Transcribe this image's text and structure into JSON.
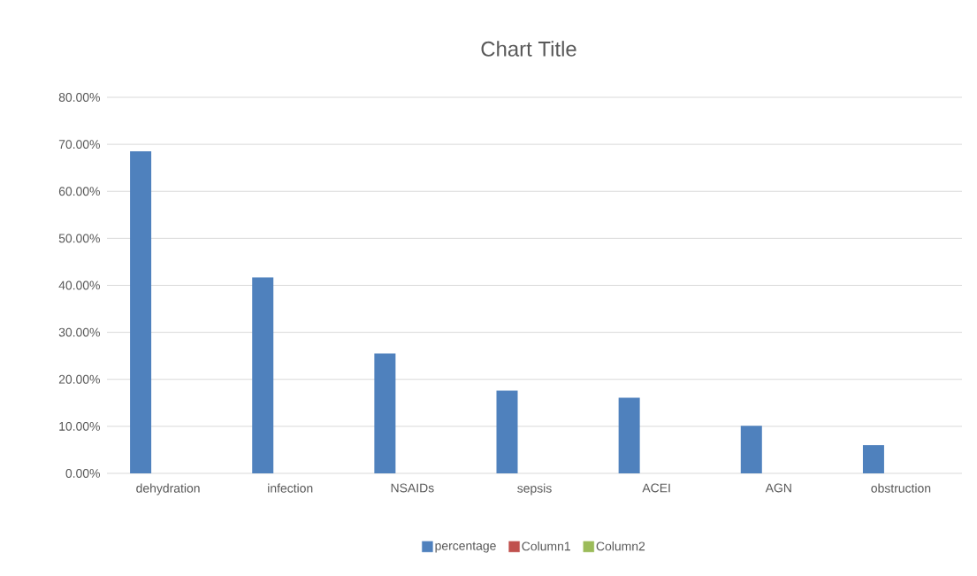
{
  "chart_data": {
    "type": "bar",
    "title": "Chart Title",
    "categories": [
      "dehydration",
      "infection",
      "NSAIDs",
      "sepsis",
      "ACEI",
      "AGN",
      "obstruction"
    ],
    "series": [
      {
        "name": "percentage",
        "color": "#4f81bd",
        "values": [
          68.5,
          41.7,
          25.5,
          17.6,
          16.1,
          10.1,
          6.0
        ]
      },
      {
        "name": "Column1",
        "color": "#c0504d",
        "values": [
          null,
          null,
          null,
          null,
          null,
          null,
          null
        ]
      },
      {
        "name": "Column2",
        "color": "#9bbb59",
        "values": [
          null,
          null,
          null,
          null,
          null,
          null,
          null
        ]
      }
    ],
    "ylim": [
      0,
      80
    ],
    "yticks": [
      {
        "value": 0,
        "label": "0.00%"
      },
      {
        "value": 10,
        "label": "10.00%"
      },
      {
        "value": 20,
        "label": "20.00%"
      },
      {
        "value": 30,
        "label": "30.00%"
      },
      {
        "value": 40,
        "label": "40.00%"
      },
      {
        "value": 50,
        "label": "50.00%"
      },
      {
        "value": 60,
        "label": "60.00%"
      },
      {
        "value": 70,
        "label": "70.00%"
      },
      {
        "value": 80,
        "label": "80.00%"
      }
    ],
    "grid": "y",
    "legend": "bottom"
  }
}
